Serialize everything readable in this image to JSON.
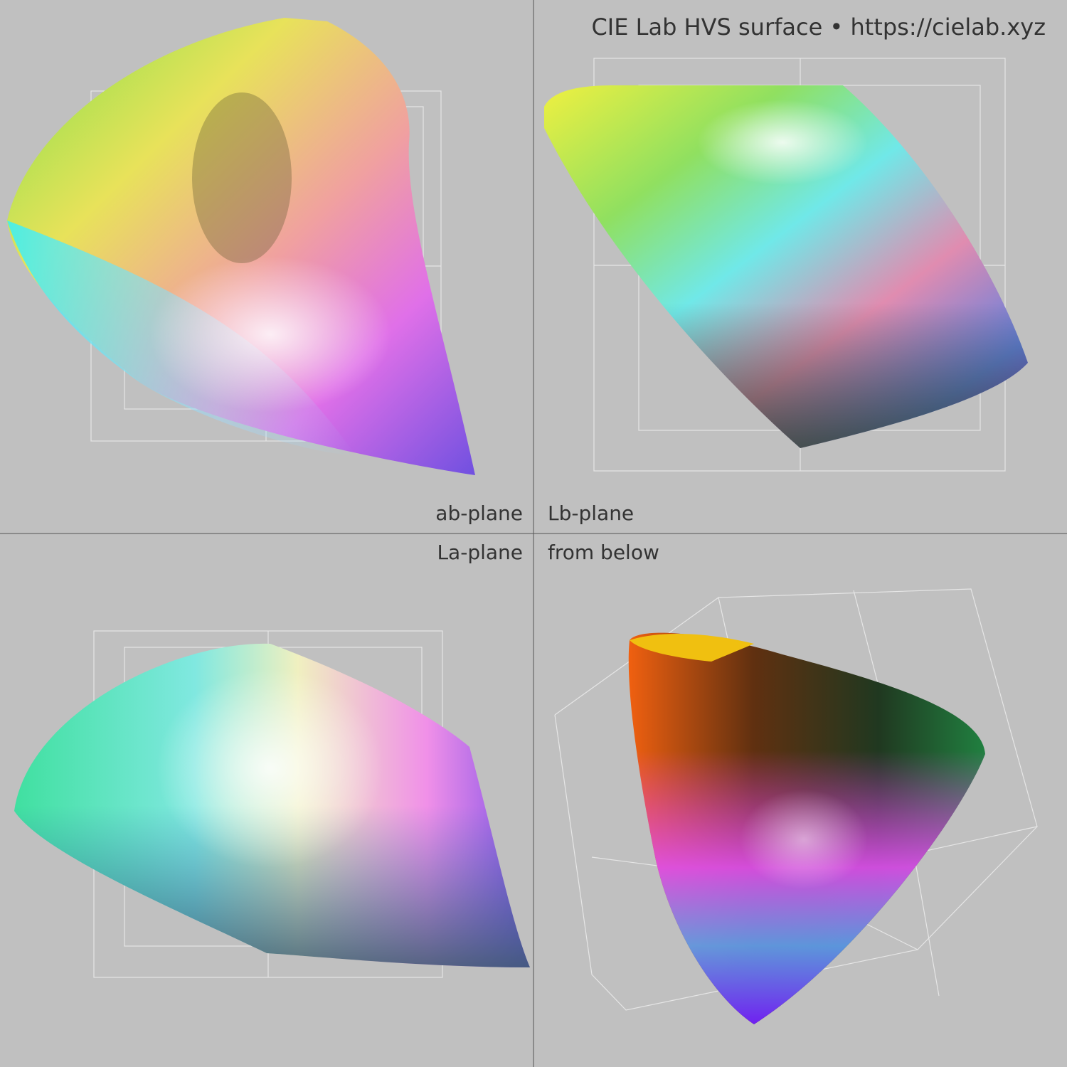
{
  "header": {
    "title": "CIE Lab HVS surface • https://cielab.xyz"
  },
  "panels": [
    {
      "label": "ab-plane"
    },
    {
      "label": "Lb-plane"
    },
    {
      "label": "La-plane"
    },
    {
      "label": "from below"
    }
  ]
}
